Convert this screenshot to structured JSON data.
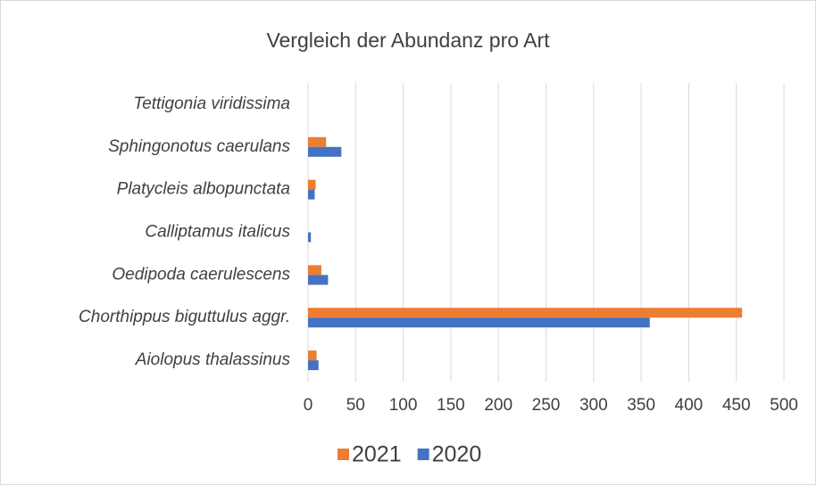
{
  "chart_data": {
    "type": "bar",
    "orientation": "horizontal",
    "title": "Vergleich der Abundanz pro Art",
    "categories": [
      "Aiolopus thalassinus",
      "Chorthippus biguttulus aggr.",
      "Oedipoda caerulescens",
      "Calliptamus italicus",
      "Platycleis albopunctata",
      "Sphingonotus caerulans",
      "Tettigonia viridissima"
    ],
    "series": [
      {
        "name": "2021",
        "color": "#ed7d31",
        "values": [
          9,
          456,
          14,
          0,
          8,
          19,
          0
        ]
      },
      {
        "name": "2020",
        "color": "#4472c4",
        "values": [
          11,
          359,
          21,
          3,
          7,
          35,
          0
        ]
      }
    ],
    "xlim": [
      0,
      500
    ],
    "xticks": [
      0,
      50,
      100,
      150,
      200,
      250,
      300,
      350,
      400,
      450,
      500
    ],
    "grid": true,
    "legend": "bottom"
  }
}
